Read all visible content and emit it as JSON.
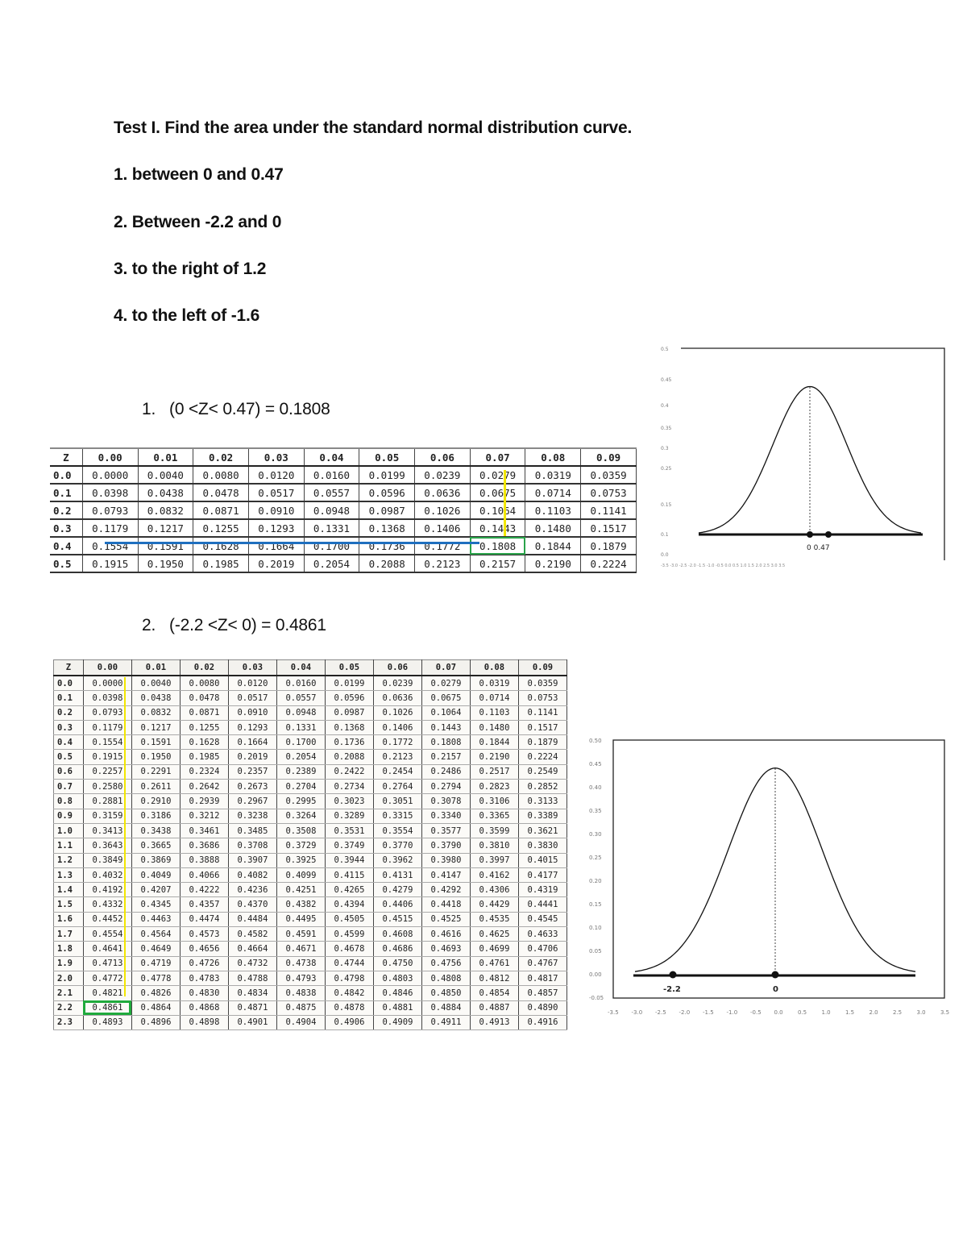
{
  "document": {
    "title": "Test I. Find the area under the standard normal distribution curve.",
    "questions": [
      "1. between 0 and 0.47",
      "2. Between -2.2 and 0",
      "3. to the right of 1.2",
      "4. to the left of -1.6"
    ],
    "answers": [
      {
        "label": "1.",
        "expression": "(0 <Z< 0.47) = 0.1808"
      },
      {
        "label": "2.",
        "expression": "(-2.2 <Z< 0) = 0.4861"
      }
    ]
  },
  "colors": {
    "highlight_box": "#2aa34a",
    "column_marker": "#f2e600",
    "row_marker": "#1f6fbf"
  },
  "table1": {
    "headers": [
      "Z",
      "0.00",
      "0.01",
      "0.02",
      "0.03",
      "0.04",
      "0.05",
      "0.06",
      "0.07",
      "0.08",
      "0.09"
    ],
    "rows": [
      [
        "0.0",
        "0.0000",
        "0.0040",
        "0.0080",
        "0.0120",
        "0.0160",
        "0.0199",
        "0.0239",
        "0.0279",
        "0.0319",
        "0.0359"
      ],
      [
        "0.1",
        "0.0398",
        "0.0438",
        "0.0478",
        "0.0517",
        "0.0557",
        "0.0596",
        "0.0636",
        "0.0675",
        "0.0714",
        "0.0753"
      ],
      [
        "0.2",
        "0.0793",
        "0.0832",
        "0.0871",
        "0.0910",
        "0.0948",
        "0.0987",
        "0.1026",
        "0.1064",
        "0.1103",
        "0.1141"
      ],
      [
        "0.3",
        "0.1179",
        "0.1217",
        "0.1255",
        "0.1293",
        "0.1331",
        "0.1368",
        "0.1406",
        "0.1443",
        "0.1480",
        "0.1517"
      ],
      [
        "0.4",
        "0.1554",
        "0.1591",
        "0.1628",
        "0.1664",
        "0.1700",
        "0.1736",
        "0.1772",
        "0.1808",
        "0.1844",
        "0.1879"
      ],
      [
        "0.5",
        "0.1915",
        "0.1950",
        "0.1985",
        "0.2019",
        "0.2054",
        "0.2088",
        "0.2123",
        "0.2157",
        "0.2190",
        "0.2224"
      ]
    ],
    "highlighted_cell": "0.1808"
  },
  "table2": {
    "headers": [
      "Z",
      "0.00",
      "0.01",
      "0.02",
      "0.03",
      "0.04",
      "0.05",
      "0.06",
      "0.07",
      "0.08",
      "0.09"
    ],
    "rows": [
      [
        "0.0",
        "0.0000",
        "0.0040",
        "0.0080",
        "0.0120",
        "0.0160",
        "0.0199",
        "0.0239",
        "0.0279",
        "0.0319",
        "0.0359"
      ],
      [
        "0.1",
        "0.0398",
        "0.0438",
        "0.0478",
        "0.0517",
        "0.0557",
        "0.0596",
        "0.0636",
        "0.0675",
        "0.0714",
        "0.0753"
      ],
      [
        "0.2",
        "0.0793",
        "0.0832",
        "0.0871",
        "0.0910",
        "0.0948",
        "0.0987",
        "0.1026",
        "0.1064",
        "0.1103",
        "0.1141"
      ],
      [
        "0.3",
        "0.1179",
        "0.1217",
        "0.1255",
        "0.1293",
        "0.1331",
        "0.1368",
        "0.1406",
        "0.1443",
        "0.1480",
        "0.1517"
      ],
      [
        "0.4",
        "0.1554",
        "0.1591",
        "0.1628",
        "0.1664",
        "0.1700",
        "0.1736",
        "0.1772",
        "0.1808",
        "0.1844",
        "0.1879"
      ],
      [
        "0.5",
        "0.1915",
        "0.1950",
        "0.1985",
        "0.2019",
        "0.2054",
        "0.2088",
        "0.2123",
        "0.2157",
        "0.2190",
        "0.2224"
      ],
      [
        "0.6",
        "0.2257",
        "0.2291",
        "0.2324",
        "0.2357",
        "0.2389",
        "0.2422",
        "0.2454",
        "0.2486",
        "0.2517",
        "0.2549"
      ],
      [
        "0.7",
        "0.2580",
        "0.2611",
        "0.2642",
        "0.2673",
        "0.2704",
        "0.2734",
        "0.2764",
        "0.2794",
        "0.2823",
        "0.2852"
      ],
      [
        "0.8",
        "0.2881",
        "0.2910",
        "0.2939",
        "0.2967",
        "0.2995",
        "0.3023",
        "0.3051",
        "0.3078",
        "0.3106",
        "0.3133"
      ],
      [
        "0.9",
        "0.3159",
        "0.3186",
        "0.3212",
        "0.3238",
        "0.3264",
        "0.3289",
        "0.3315",
        "0.3340",
        "0.3365",
        "0.3389"
      ],
      [
        "1.0",
        "0.3413",
        "0.3438",
        "0.3461",
        "0.3485",
        "0.3508",
        "0.3531",
        "0.3554",
        "0.3577",
        "0.3599",
        "0.3621"
      ],
      [
        "1.1",
        "0.3643",
        "0.3665",
        "0.3686",
        "0.3708",
        "0.3729",
        "0.3749",
        "0.3770",
        "0.3790",
        "0.3810",
        "0.3830"
      ],
      [
        "1.2",
        "0.3849",
        "0.3869",
        "0.3888",
        "0.3907",
        "0.3925",
        "0.3944",
        "0.3962",
        "0.3980",
        "0.3997",
        "0.4015"
      ],
      [
        "1.3",
        "0.4032",
        "0.4049",
        "0.4066",
        "0.4082",
        "0.4099",
        "0.4115",
        "0.4131",
        "0.4147",
        "0.4162",
        "0.4177"
      ],
      [
        "1.4",
        "0.4192",
        "0.4207",
        "0.4222",
        "0.4236",
        "0.4251",
        "0.4265",
        "0.4279",
        "0.4292",
        "0.4306",
        "0.4319"
      ],
      [
        "1.5",
        "0.4332",
        "0.4345",
        "0.4357",
        "0.4370",
        "0.4382",
        "0.4394",
        "0.4406",
        "0.4418",
        "0.4429",
        "0.4441"
      ],
      [
        "1.6",
        "0.4452",
        "0.4463",
        "0.4474",
        "0.4484",
        "0.4495",
        "0.4505",
        "0.4515",
        "0.4525",
        "0.4535",
        "0.4545"
      ],
      [
        "1.7",
        "0.4554",
        "0.4564",
        "0.4573",
        "0.4582",
        "0.4591",
        "0.4599",
        "0.4608",
        "0.4616",
        "0.4625",
        "0.4633"
      ],
      [
        "1.8",
        "0.4641",
        "0.4649",
        "0.4656",
        "0.4664",
        "0.4671",
        "0.4678",
        "0.4686",
        "0.4693",
        "0.4699",
        "0.4706"
      ],
      [
        "1.9",
        "0.4713",
        "0.4719",
        "0.4726",
        "0.4732",
        "0.4738",
        "0.4744",
        "0.4750",
        "0.4756",
        "0.4761",
        "0.4767"
      ],
      [
        "2.0",
        "0.4772",
        "0.4778",
        "0.4783",
        "0.4788",
        "0.4793",
        "0.4798",
        "0.4803",
        "0.4808",
        "0.4812",
        "0.4817"
      ],
      [
        "2.1",
        "0.4821",
        "0.4826",
        "0.4830",
        "0.4834",
        "0.4838",
        "0.4842",
        "0.4846",
        "0.4850",
        "0.4854",
        "0.4857"
      ],
      [
        "2.2",
        "0.4861",
        "0.4864",
        "0.4868",
        "0.4871",
        "0.4875",
        "0.4878",
        "0.4881",
        "0.4884",
        "0.4887",
        "0.4890"
      ],
      [
        "2.3",
        "0.4893",
        "0.4896",
        "0.4898",
        "0.4901",
        "0.4904",
        "0.4906",
        "0.4909",
        "0.4911",
        "0.4913",
        "0.4916"
      ]
    ],
    "highlighted_cell": "0.4861"
  },
  "chart1": {
    "type": "line",
    "title": "",
    "description": "Standard normal curve with markers at 0 and 0.47",
    "markers": [
      {
        "x": 0,
        "label": "0"
      },
      {
        "x": 0.47,
        "label": "0.47"
      }
    ],
    "marker_label_text": "0  0.47",
    "xlim": [
      -3.5,
      3.5
    ],
    "ylim": [
      -0.05,
      0.5
    ]
  },
  "chart2": {
    "type": "line",
    "title": "",
    "description": "Standard normal curve with markers at -2.2 and 0",
    "markers": [
      {
        "x": -2.2,
        "label": "-2.2"
      },
      {
        "x": 0,
        "label": "0"
      }
    ],
    "y_ticks": [
      "0.50",
      "0.45",
      "0.40",
      "0.35",
      "0.30",
      "0.25",
      "0.20",
      "0.15",
      "0.10",
      "0.05",
      "0.00",
      "-0.05"
    ],
    "x_ticks": [
      "-3.5",
      "-3.0",
      "-2.5",
      "-2.0",
      "-1.5",
      "-1.0",
      "-0.5",
      "0.0",
      "0.5",
      "1.0",
      "1.5",
      "2.0",
      "2.5",
      "3.0",
      "3.5"
    ],
    "xlim": [
      -3.5,
      3.5
    ],
    "ylim": [
      -0.05,
      0.5
    ]
  },
  "chart_data": [
    {
      "type": "line",
      "title": "",
      "xlabel": "",
      "ylabel": "",
      "series": [
        {
          "name": "standard normal pdf",
          "x": [
            -3,
            -2.5,
            -2,
            -1.5,
            -1,
            -0.5,
            0,
            0.5,
            1,
            1.5,
            2,
            2.5,
            3
          ],
          "values": [
            0.0044,
            0.0175,
            0.054,
            0.1295,
            0.242,
            0.3521,
            0.3989,
            0.3521,
            0.242,
            0.1295,
            0.054,
            0.0175,
            0.0044
          ]
        }
      ],
      "annotations": [
        {
          "x": 0,
          "label": "0"
        },
        {
          "x": 0.47,
          "label": "0.47"
        }
      ],
      "xlim": [
        -3.5,
        3.5
      ],
      "ylim": [
        -0.05,
        0.5
      ],
      "grid": false
    },
    {
      "type": "line",
      "title": "",
      "xlabel": "",
      "ylabel": "",
      "series": [
        {
          "name": "standard normal pdf",
          "x": [
            -3,
            -2.5,
            -2,
            -1.5,
            -1,
            -0.5,
            0,
            0.5,
            1,
            1.5,
            2,
            2.5,
            3
          ],
          "values": [
            0.0044,
            0.0175,
            0.054,
            0.1295,
            0.242,
            0.3521,
            0.3989,
            0.3521,
            0.242,
            0.1295,
            0.054,
            0.0175,
            0.0044
          ]
        }
      ],
      "annotations": [
        {
          "x": -2.2,
          "label": "-2.2"
        },
        {
          "x": 0,
          "label": "0"
        }
      ],
      "y_ticks": [
        -0.05,
        0.0,
        0.05,
        0.1,
        0.15,
        0.2,
        0.25,
        0.3,
        0.35,
        0.4,
        0.45,
        0.5
      ],
      "x_ticks": [
        -3.5,
        -3.0,
        -2.5,
        -2.0,
        -1.5,
        -1.0,
        -0.5,
        0.0,
        0.5,
        1.0,
        1.5,
        2.0,
        2.5,
        3.0,
        3.5
      ],
      "xlim": [
        -3.5,
        3.5
      ],
      "ylim": [
        -0.05,
        0.5
      ],
      "grid": false
    }
  ]
}
